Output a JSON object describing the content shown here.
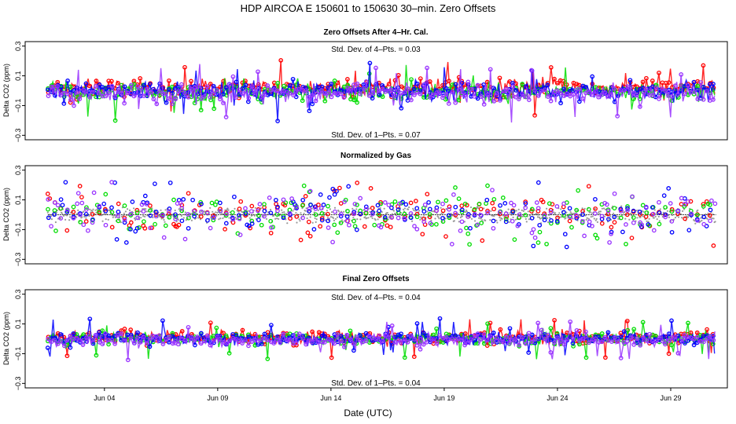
{
  "chart_data": {
    "title": "HDP    AIRCOA E    150601 to 150630    30–min. Zero Offsets",
    "xlabel": "Date (UTC)",
    "x_axis": {
      "range_days": [
        0.5,
        31.5
      ],
      "ticks": [
        {
          "day": 4,
          "label": "Jun 04"
        },
        {
          "day": 9,
          "label": "Jun 09"
        },
        {
          "day": 14,
          "label": "Jun 14"
        },
        {
          "day": 19,
          "label": "Jun 19"
        },
        {
          "day": 24,
          "label": "Jun 24"
        },
        {
          "day": 29,
          "label": "Jun 29"
        }
      ],
      "data_span_days": [
        1.5,
        31.0
      ]
    },
    "series_colors": [
      "#ff0000",
      "#00dd00",
      "#0000ff",
      "#9933ff"
    ],
    "panels": [
      {
        "type": "scatter",
        "title": "Zero Offsets After 4–Hr. Cal.",
        "ylabel": "Delta CO2 (ppm)",
        "ylim": [
          -0.33,
          0.33
        ],
        "yticks": [
          0.3,
          0.1,
          -0.1,
          -0.3
        ],
        "ytick_labels": [
          "0.3",
          "0.1",
          "−0.1",
          "−0.3"
        ],
        "stat_top": "Std. Dev. of 4–Pts. =  0.03",
        "stat_bottom": "Std. Dev. of 1–Pts. =  0.07",
        "series_mean": [
          0.02,
          -0.01,
          -0.005,
          -0.02
        ],
        "series_sd": [
          0.05,
          0.05,
          0.05,
          0.05
        ],
        "outlier_extent": 0.2,
        "gray_band": false
      },
      {
        "type": "scatter",
        "title": "Normalized by Gas",
        "ylabel": "Delta CO2 (ppm)",
        "ylim": [
          -0.33,
          0.33
        ],
        "yticks": [
          0.3,
          0.1,
          -0.1,
          -0.3
        ],
        "ytick_labels": [
          "0.3",
          "0.1",
          "−0.1",
          "−0.3"
        ],
        "stat_top": "",
        "stat_bottom": "",
        "series_mean": [
          0.0,
          0.0,
          0.0,
          0.0
        ],
        "series_sd": [
          0.07,
          0.07,
          0.07,
          0.07
        ],
        "outlier_extent": 0.22,
        "gray_band": true,
        "gray_band_halfwidth": 0.06
      },
      {
        "type": "scatter",
        "title": "Final Zero Offsets",
        "ylabel": "Delta CO2 (ppm)",
        "ylim": [
          -0.33,
          0.33
        ],
        "yticks": [
          0.3,
          0.1,
          -0.1,
          -0.3
        ],
        "ytick_labels": [
          "0.3",
          "0.1",
          "−0.1",
          "−0.3"
        ],
        "stat_top": "Std. Dev. of 4–Pts. =  0.04",
        "stat_bottom": "Std. Dev. of 1–Pts. =  0.04",
        "series_mean": [
          0.01,
          0.0,
          0.0,
          -0.01
        ],
        "series_sd": [
          0.035,
          0.035,
          0.035,
          0.035
        ],
        "outlier_extent": 0.14,
        "gray_band": false
      }
    ]
  }
}
